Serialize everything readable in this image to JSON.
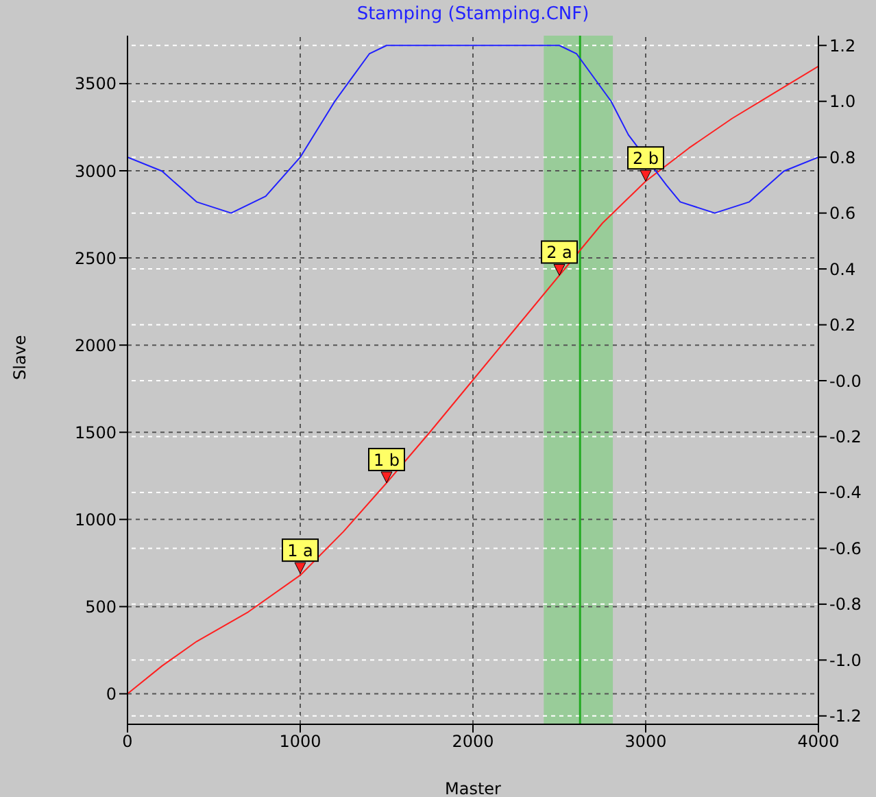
{
  "chart_data": {
    "type": "line",
    "title": "Stamping (Stamping.CNF)",
    "xlabel": "Master",
    "ylabel": "Slave",
    "xlim": [
      0,
      4000
    ],
    "xticks": [
      0,
      1000,
      2000,
      3000,
      4000
    ],
    "ylim": [
      -175,
      3775
    ],
    "yticks": [
      0,
      500,
      1000,
      1500,
      2000,
      2500,
      3000,
      3500
    ],
    "y2lim": [
      -1.23,
      1.235
    ],
    "y2ticks": [
      {
        "value": 1.2,
        "label": "1.2"
      },
      {
        "value": 1.0,
        "label": "1.0"
      },
      {
        "value": 0.8,
        "label": "0.8"
      },
      {
        "value": 0.6,
        "label": "0.6"
      },
      {
        "value": 0.4,
        "label": "0.4"
      },
      {
        "value": 0.2,
        "label": "0.2"
      },
      {
        "value": 0,
        "label": "-0.0"
      },
      {
        "value": -0.2,
        "label": "-0.2"
      },
      {
        "value": -0.4,
        "label": "-0.4"
      },
      {
        "value": -0.6,
        "label": "-0.6"
      },
      {
        "value": -0.8,
        "label": "-0.8"
      },
      {
        "value": -1.0,
        "label": "-1.0"
      },
      {
        "value": -1.2,
        "label": "-1.2"
      }
    ],
    "grid": true,
    "marker": "none",
    "line_style": "solid",
    "series": [
      {
        "type": "line",
        "color": "#ff2020",
        "x": [
          0,
          200,
          400,
          700,
          1000,
          1250,
          1500,
          1750,
          2000,
          2250,
          2500,
          2750,
          3000,
          3250,
          3500,
          3750,
          4000
        ],
        "values": [
          0,
          160,
          300,
          470,
          680,
          930,
          1210,
          1500,
          1800,
          2100,
          2400,
          2700,
          2940,
          3130,
          3300,
          3450,
          3600
        ]
      },
      {
        "type": "line",
        "color": "#2020ff",
        "axis": "y2",
        "x": [
          0,
          200,
          400,
          600,
          800,
          1000,
          1200,
          1400,
          1500,
          2500,
          2600,
          2800,
          2900,
          3120,
          3200,
          3400,
          3600,
          3800,
          4000
        ],
        "values": [
          0.8,
          0.75,
          0.64,
          0.6,
          0.66,
          0.8,
          1.0,
          1.17,
          1.2,
          1.2,
          1.17,
          1.0,
          0.88,
          0.7,
          0.64,
          0.6,
          0.64,
          0.75,
          0.8
        ]
      }
    ],
    "bands": [
      {
        "axis": "x",
        "from": 2410,
        "to": 2810,
        "color": "#99cc99"
      }
    ],
    "ref_lines": [
      {
        "axis": "x",
        "value": 2620,
        "color": "#22aa22"
      }
    ],
    "annotations": [
      {
        "text": "1 a",
        "x": 1000,
        "y": 690
      },
      {
        "text": "1 b",
        "x": 1500,
        "y": 1210
      },
      {
        "text": "2 a",
        "x": 2500,
        "y": 2400
      },
      {
        "text": "2 b",
        "x": 3000,
        "y": 2940
      }
    ]
  }
}
